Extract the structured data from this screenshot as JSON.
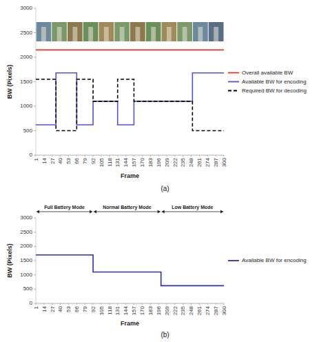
{
  "chart_data": [
    {
      "type": "line",
      "caption": "(a)",
      "x_label": "Frame",
      "y_label": "BW (Pixels)",
      "xlim": [
        1,
        300
      ],
      "xticks": [
        1,
        14,
        27,
        40,
        53,
        66,
        79,
        92,
        105,
        118,
        131,
        144,
        157,
        170,
        183,
        196,
        209,
        222,
        235,
        248,
        261,
        274,
        287,
        300
      ],
      "ylim": [
        0,
        3000
      ],
      "yticks": [
        0,
        500,
        1000,
        1500,
        2000,
        2500,
        3000
      ],
      "grid": false,
      "legend": "right",
      "series": [
        {
          "name": "Overall available BW",
          "color": "#e8312a",
          "line_style": "solid",
          "x": [
            1,
            300
          ],
          "values": [
            2150,
            2150
          ]
        },
        {
          "name": "Available BW for encoding",
          "color": "#5050d8",
          "line_style": "solid",
          "x": [
            1,
            33,
            33,
            66,
            66,
            92,
            92,
            131,
            131,
            157,
            157,
            250,
            250,
            300
          ],
          "values": [
            620,
            620,
            1680,
            1680,
            620,
            620,
            1100,
            1100,
            620,
            620,
            1100,
            1100,
            1680,
            1680
          ]
        },
        {
          "name": "Required BW for decoding",
          "color": "#000000",
          "line_style": "dashed",
          "x": [
            1,
            33,
            33,
            66,
            66,
            92,
            92,
            131,
            131,
            157,
            157,
            250,
            250,
            300
          ],
          "values": [
            1550,
            1550,
            500,
            500,
            1550,
            1550,
            1100,
            1100,
            1550,
            1550,
            1100,
            1100,
            500,
            500
          ]
        }
      ]
    },
    {
      "type": "line",
      "caption": "(b)",
      "x_label": "Frame",
      "y_label": "BW (Pixels)",
      "xlim": [
        1,
        300
      ],
      "xticks": [
        1,
        14,
        27,
        40,
        53,
        66,
        79,
        92,
        105,
        118,
        131,
        144,
        157,
        170,
        183,
        196,
        209,
        222,
        235,
        248,
        261,
        274,
        287,
        300
      ],
      "ylim": [
        0,
        3000
      ],
      "yticks": [
        0,
        500,
        1000,
        1500,
        2000,
        2500,
        3000
      ],
      "grid": false,
      "legend": "right",
      "annotations": [
        {
          "text": "Full Battery Mode",
          "x_start": 1,
          "x_end": 92
        },
        {
          "text": "Normal Battery Mode",
          "x_start": 92,
          "x_end": 200
        },
        {
          "text": "Low Battery Mode",
          "x_start": 200,
          "x_end": 300
        }
      ],
      "series": [
        {
          "name": "Available BW for encoding",
          "color": "#2c2cb4",
          "line_style": "solid",
          "x": [
            1,
            92,
            92,
            200,
            200,
            300
          ],
          "values": [
            1700,
            1700,
            1100,
            1100,
            620,
            620
          ]
        }
      ]
    }
  ]
}
